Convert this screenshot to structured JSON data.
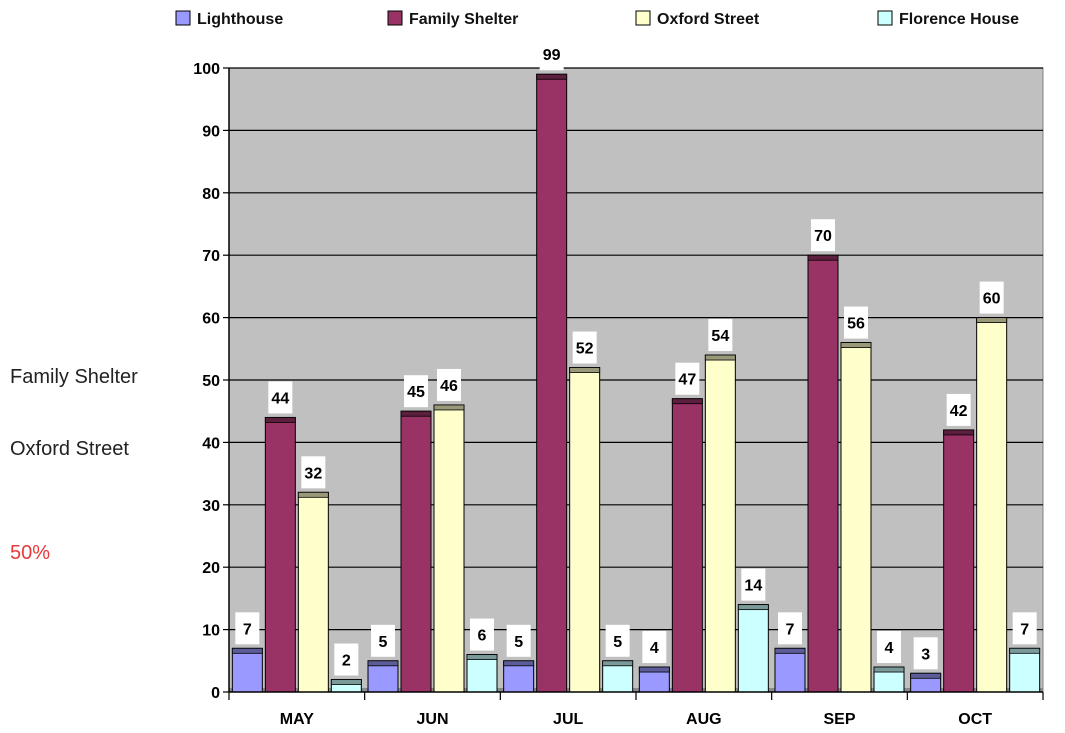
{
  "side_labels": {
    "family_shelter": "Family Shelter",
    "oxford_street": "Oxford Street",
    "percent": "50%"
  },
  "chart_data": {
    "type": "bar",
    "title": "",
    "xlabel": "",
    "ylabel": "",
    "ylim": [
      0,
      100
    ],
    "ytick_step": 10,
    "grid": true,
    "legend_placement": "top",
    "categories": [
      "MAY",
      "JUN",
      "JUL",
      "AUG",
      "SEP",
      "OCT"
    ],
    "series": [
      {
        "name": "Lighthouse",
        "color": "#9999ff",
        "values": [
          7,
          5,
          5,
          4,
          7,
          3
        ]
      },
      {
        "name": "Family Shelter",
        "color": "#993366",
        "values": [
          44,
          45,
          99,
          47,
          70,
          42
        ]
      },
      {
        "name": "Oxford Street",
        "color": "#ffffcc",
        "values": [
          32,
          46,
          52,
          54,
          56,
          60
        ]
      },
      {
        "name": "Florence House",
        "color": "#ccffff",
        "values": [
          2,
          6,
          5,
          14,
          4,
          7
        ]
      }
    ],
    "plot_background": "#c0c0c0"
  }
}
